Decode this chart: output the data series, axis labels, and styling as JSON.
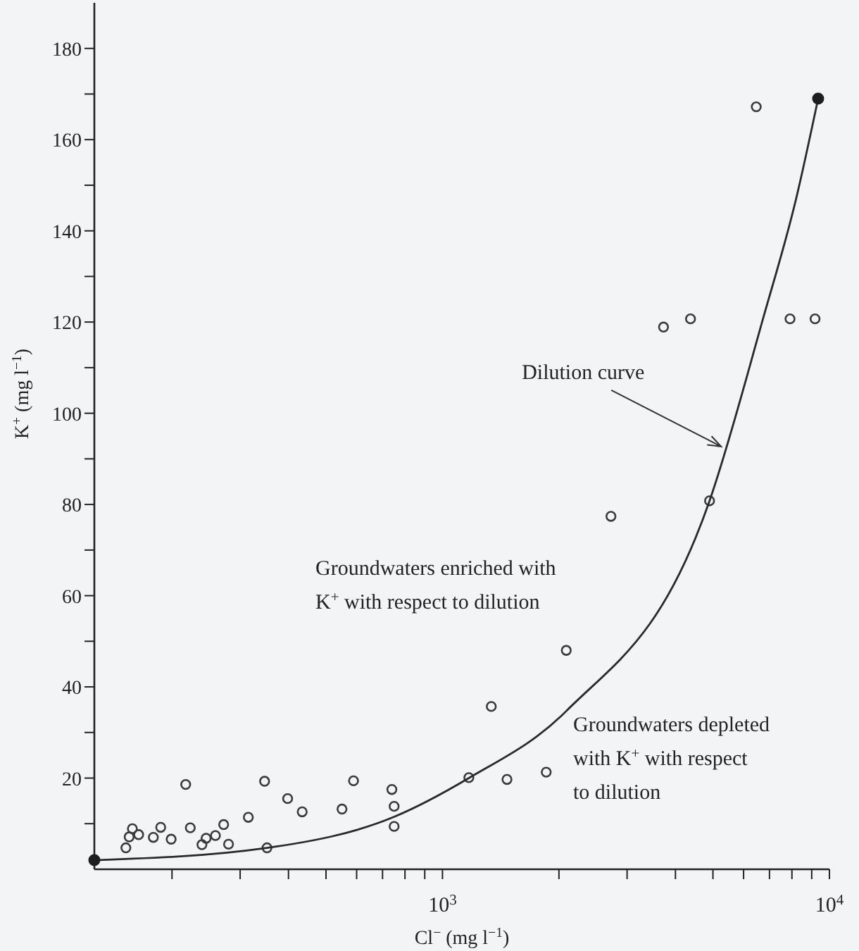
{
  "chart_data": {
    "type": "scatter",
    "xlabel": "Cl$^{−}$ (mg l$^{−1}$)",
    "ylabel": "K$^{+}$ (mg l$^{−1}$)",
    "log": "x",
    "xlim": [
      126,
      10000
    ],
    "ylim": [
      0,
      190
    ],
    "xticks": [
      {
        "value": 200,
        "label": null
      },
      {
        "value": 300,
        "label": null
      },
      {
        "value": 400,
        "label": null
      },
      {
        "value": 500,
        "label": null
      },
      {
        "value": 600,
        "label": null
      },
      {
        "value": 700,
        "label": null
      },
      {
        "value": 800,
        "label": null
      },
      {
        "value": 900,
        "label": null
      },
      {
        "value": 1000,
        "label": "10$^{3}$"
      },
      {
        "value": 2000,
        "label": null
      },
      {
        "value": 3000,
        "label": null
      },
      {
        "value": 4000,
        "label": null
      },
      {
        "value": 5000,
        "label": null
      },
      {
        "value": 6000,
        "label": null
      },
      {
        "value": 7000,
        "label": null
      },
      {
        "value": 8000,
        "label": null
      },
      {
        "value": 9000,
        "label": null
      },
      {
        "value": 10000,
        "label": "10$^{4}$"
      }
    ],
    "yticks": [
      {
        "value": 10,
        "label": null
      },
      20,
      {
        "value": 30,
        "label": null
      },
      40,
      {
        "value": 50,
        "label": null
      },
      60,
      {
        "value": 70,
        "label": null
      },
      80,
      {
        "value": 90,
        "label": null
      },
      100,
      {
        "value": 110,
        "label": null
      },
      120,
      {
        "value": 130,
        "label": null
      },
      140,
      {
        "value": 150,
        "label": null
      },
      160,
      {
        "value": 170,
        "label": null
      },
      180
    ],
    "grid": false,
    "marker": "circle",
    "series": [
      {
        "type": "scatter",
        "color": "#3a3a3a",
        "x": [
          152,
          155,
          158,
          164,
          179,
          187,
          199,
          217,
          223,
          239,
          245,
          259,
          272,
          280,
          315,
          347,
          352,
          398,
          434,
          550,
          589,
          740,
          750,
          750,
          1170,
          1337,
          1468,
          1854,
          2089,
          2725,
          3726,
          4375,
          4900,
          6470,
          7910,
          9180
        ],
        "values": [
          4.7,
          7.1,
          8.9,
          7.6,
          7.0,
          9.2,
          6.6,
          18.6,
          9.1,
          5.4,
          6.8,
          7.4,
          9.8,
          5.5,
          11.4,
          19.3,
          4.7,
          15.5,
          12.6,
          13.2,
          19.4,
          17.5,
          13.8,
          9.4,
          20.1,
          35.7,
          19.7,
          21.3,
          48.0,
          77.4,
          118.9,
          120.7,
          80.8,
          167.2,
          120.7,
          120.7
        ]
      },
      {
        "type": "line",
        "marker": "none",
        "line_style": "solid",
        "color": "#2a2a2a",
        "x": [
          126,
          352,
          750,
          1170,
          2089,
          4900,
          6750,
          8200,
          9350
        ],
        "values": [
          2.0,
          4.7,
          11.5,
          20,
          34.7,
          80.8,
          121,
          147,
          169
        ]
      },
      {
        "type": "scatter",
        "color": "#1e1e1e",
        "x": [
          126,
          9350
        ],
        "values": [
          2.0,
          169
        ]
      }
    ],
    "annotations": [
      {
        "text": "Dilution curve",
        "x": 5250,
        "y": 92.7
      },
      "Groundwaters enriched with\nK$^{+}$ with respect to dilution",
      "Groundwaters depleted\nwith K$^{+}$ with respect\nto dilution"
    ]
  }
}
